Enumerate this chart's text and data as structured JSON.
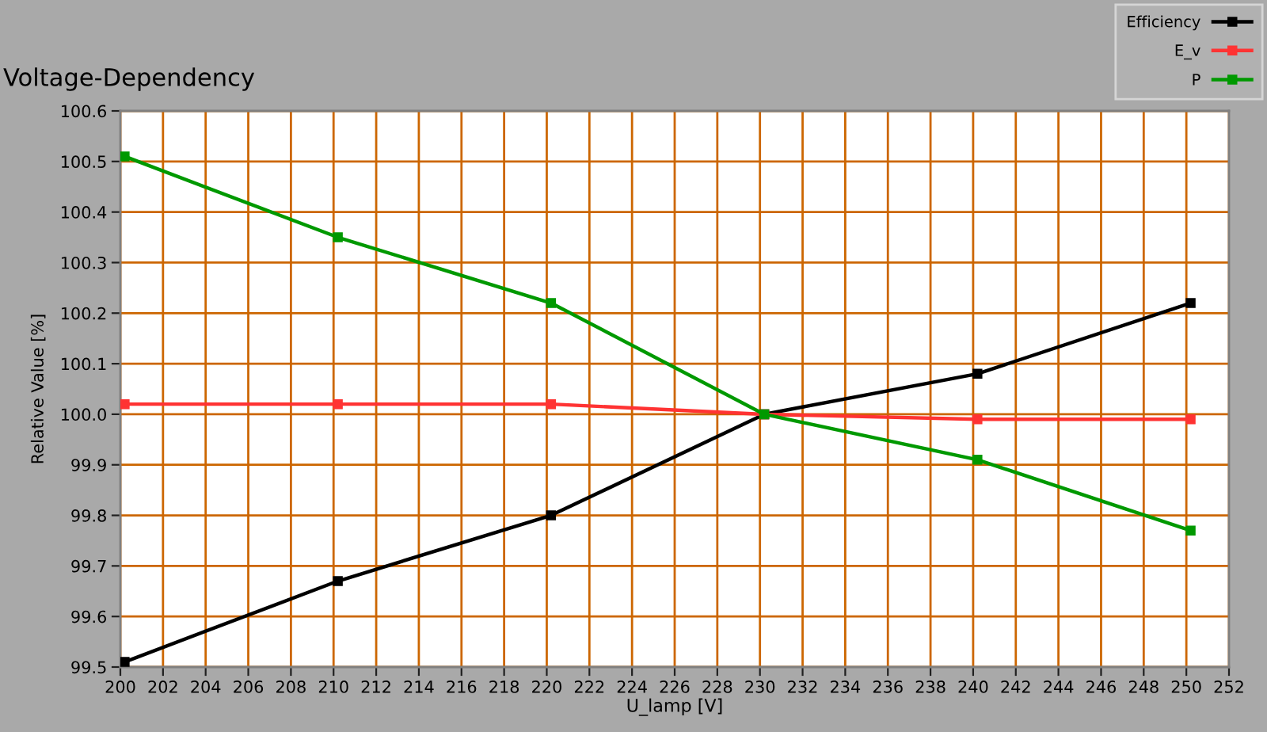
{
  "chart_data": {
    "type": "line",
    "title": "Voltage-Dependency",
    "xlabel": "U_lamp [V]",
    "ylabel": "Relative Value [%]",
    "x": [
      200.2,
      210.2,
      220.2,
      230.2,
      240.2,
      250.2
    ],
    "series": [
      {
        "name": "Efficiency",
        "color": "#000000",
        "values": [
          99.51,
          99.67,
          99.8,
          100.0,
          100.08,
          100.22
        ]
      },
      {
        "name": "E_v",
        "color": "#ff3333",
        "values": [
          100.02,
          100.02,
          100.02,
          100.0,
          99.99,
          99.99
        ]
      },
      {
        "name": "P",
        "color": "#009900",
        "values": [
          100.51,
          100.35,
          100.22,
          100.0,
          99.91,
          99.77
        ]
      }
    ],
    "xlim": [
      200,
      252
    ],
    "xticks": [
      200,
      202,
      204,
      206,
      208,
      210,
      212,
      214,
      216,
      218,
      220,
      222,
      224,
      226,
      228,
      230,
      232,
      234,
      236,
      238,
      240,
      242,
      244,
      246,
      248,
      250,
      252
    ],
    "ylim": [
      99.5,
      100.6
    ],
    "yticks": [
      99.5,
      99.6,
      99.7,
      99.8,
      99.9,
      {
        "value": 100,
        "label": "100.0"
      },
      100.1,
      100.2,
      100.3,
      100.4,
      100.5,
      100.6
    ],
    "grid": true,
    "legend": "top right",
    "marker": "square",
    "line_style": "solid"
  }
}
